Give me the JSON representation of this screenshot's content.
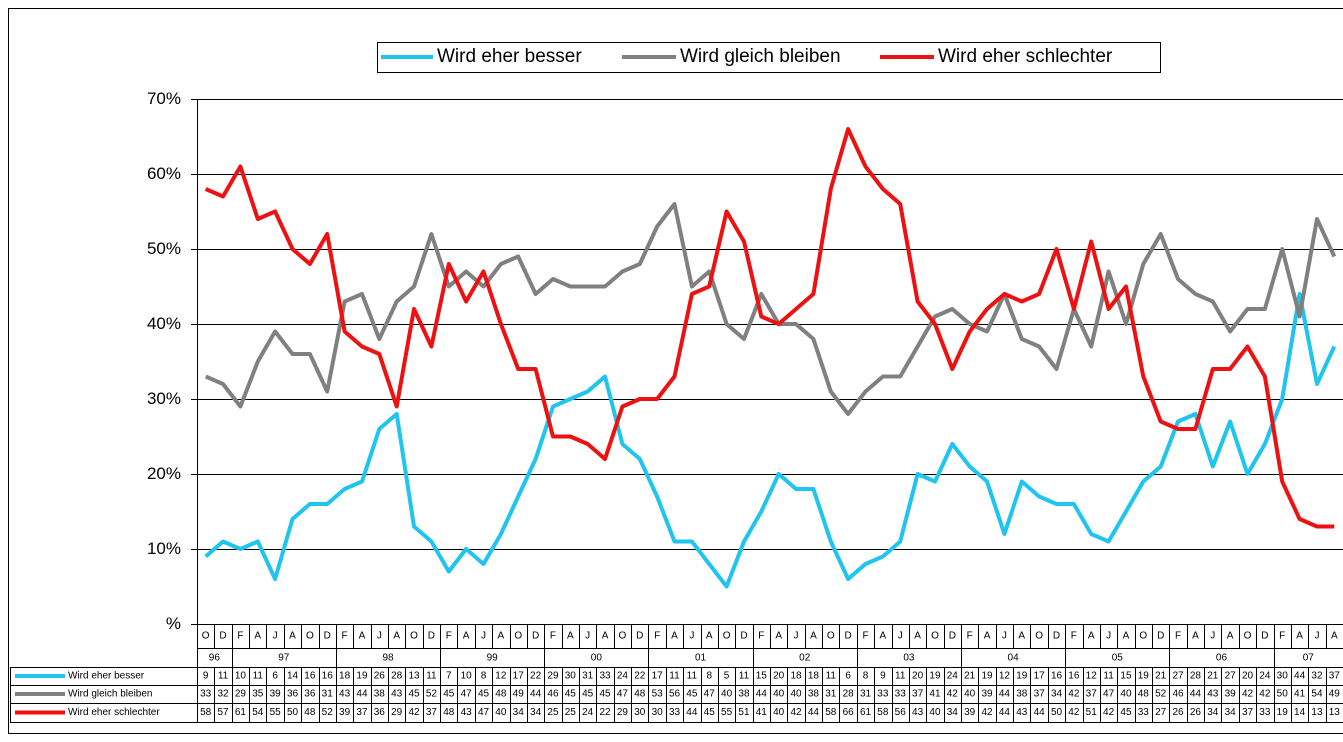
{
  "chart_data": {
    "type": "line",
    "categories": [
      "O",
      "D",
      "F",
      "A",
      "J",
      "A",
      "O",
      "D",
      "F",
      "A",
      "J",
      "A",
      "O",
      "D",
      "F",
      "A",
      "J",
      "A",
      "O",
      "D",
      "F",
      "A",
      "J",
      "A",
      "O",
      "D",
      "F",
      "A",
      "J",
      "A",
      "O",
      "D",
      "F",
      "A",
      "J",
      "A",
      "O",
      "D",
      "F",
      "A",
      "J",
      "A",
      "O",
      "D",
      "F",
      "A",
      "J",
      "A",
      "O",
      "D",
      "F",
      "A",
      "J",
      "A",
      "O",
      "D",
      "F",
      "A",
      "J",
      "A",
      "O",
      "D",
      "F",
      "A",
      "J",
      "A"
    ],
    "year_labels": [
      "96",
      "97",
      "98",
      "99",
      "00",
      "01",
      "02",
      "03",
      "04",
      "05",
      "06",
      "07"
    ],
    "series": [
      {
        "name": "Wird eher besser",
        "color": "#1fc4ef",
        "values": [
          9,
          11,
          10,
          11,
          6,
          14,
          16,
          16,
          18,
          19,
          26,
          28,
          13,
          11,
          7,
          10,
          8,
          12,
          17,
          22,
          29,
          30,
          31,
          33,
          24,
          22,
          17,
          11,
          11,
          8,
          5,
          11,
          15,
          20,
          18,
          18,
          11,
          6,
          8,
          9,
          11,
          20,
          19,
          24,
          21,
          19,
          12,
          19,
          17,
          16,
          16,
          12,
          11,
          15,
          19,
          21,
          27,
          28,
          21,
          27,
          20,
          24,
          30,
          44,
          32,
          37
        ]
      },
      {
        "name": "Wird gleich bleiben",
        "color": "#808080",
        "values": [
          33,
          32,
          29,
          35,
          39,
          36,
          36,
          31,
          43,
          44,
          38,
          43,
          45,
          52,
          45,
          47,
          45,
          48,
          49,
          44,
          46,
          45,
          45,
          45,
          47,
          48,
          53,
          56,
          45,
          47,
          40,
          38,
          44,
          40,
          40,
          38,
          31,
          28,
          31,
          33,
          33,
          37,
          41,
          42,
          40,
          39,
          44,
          38,
          37,
          34,
          42,
          37,
          47,
          40,
          48,
          52,
          46,
          44,
          43,
          39,
          42,
          42,
          50,
          41,
          54,
          49
        ]
      },
      {
        "name": "Wird eher schlechter",
        "color": "#ee1111",
        "values": [
          58,
          57,
          61,
          54,
          55,
          50,
          48,
          52,
          39,
          37,
          36,
          29,
          42,
          37,
          48,
          43,
          47,
          40,
          34,
          34,
          25,
          25,
          24,
          22,
          29,
          30,
          30,
          33,
          44,
          45,
          55,
          51,
          41,
          40,
          42,
          44,
          58,
          66,
          61,
          58,
          56,
          43,
          40,
          34,
          39,
          42,
          44,
          43,
          44,
          50,
          42,
          51,
          42,
          45,
          33,
          27,
          26,
          26,
          34,
          34,
          37,
          33,
          19,
          14,
          13,
          13
        ]
      }
    ],
    "ylim": [
      0,
      70
    ],
    "yticks": [
      {
        "value": 0,
        "label": "%"
      },
      {
        "value": 10,
        "label": "10%"
      },
      {
        "value": 20,
        "label": "20%"
      },
      {
        "value": 30,
        "label": "30%"
      },
      {
        "value": 40,
        "label": "40%"
      },
      {
        "value": 50,
        "label": "50%"
      },
      {
        "value": 60,
        "label": "60%"
      },
      {
        "value": 70,
        "label": "70%"
      }
    ],
    "grid": true
  }
}
